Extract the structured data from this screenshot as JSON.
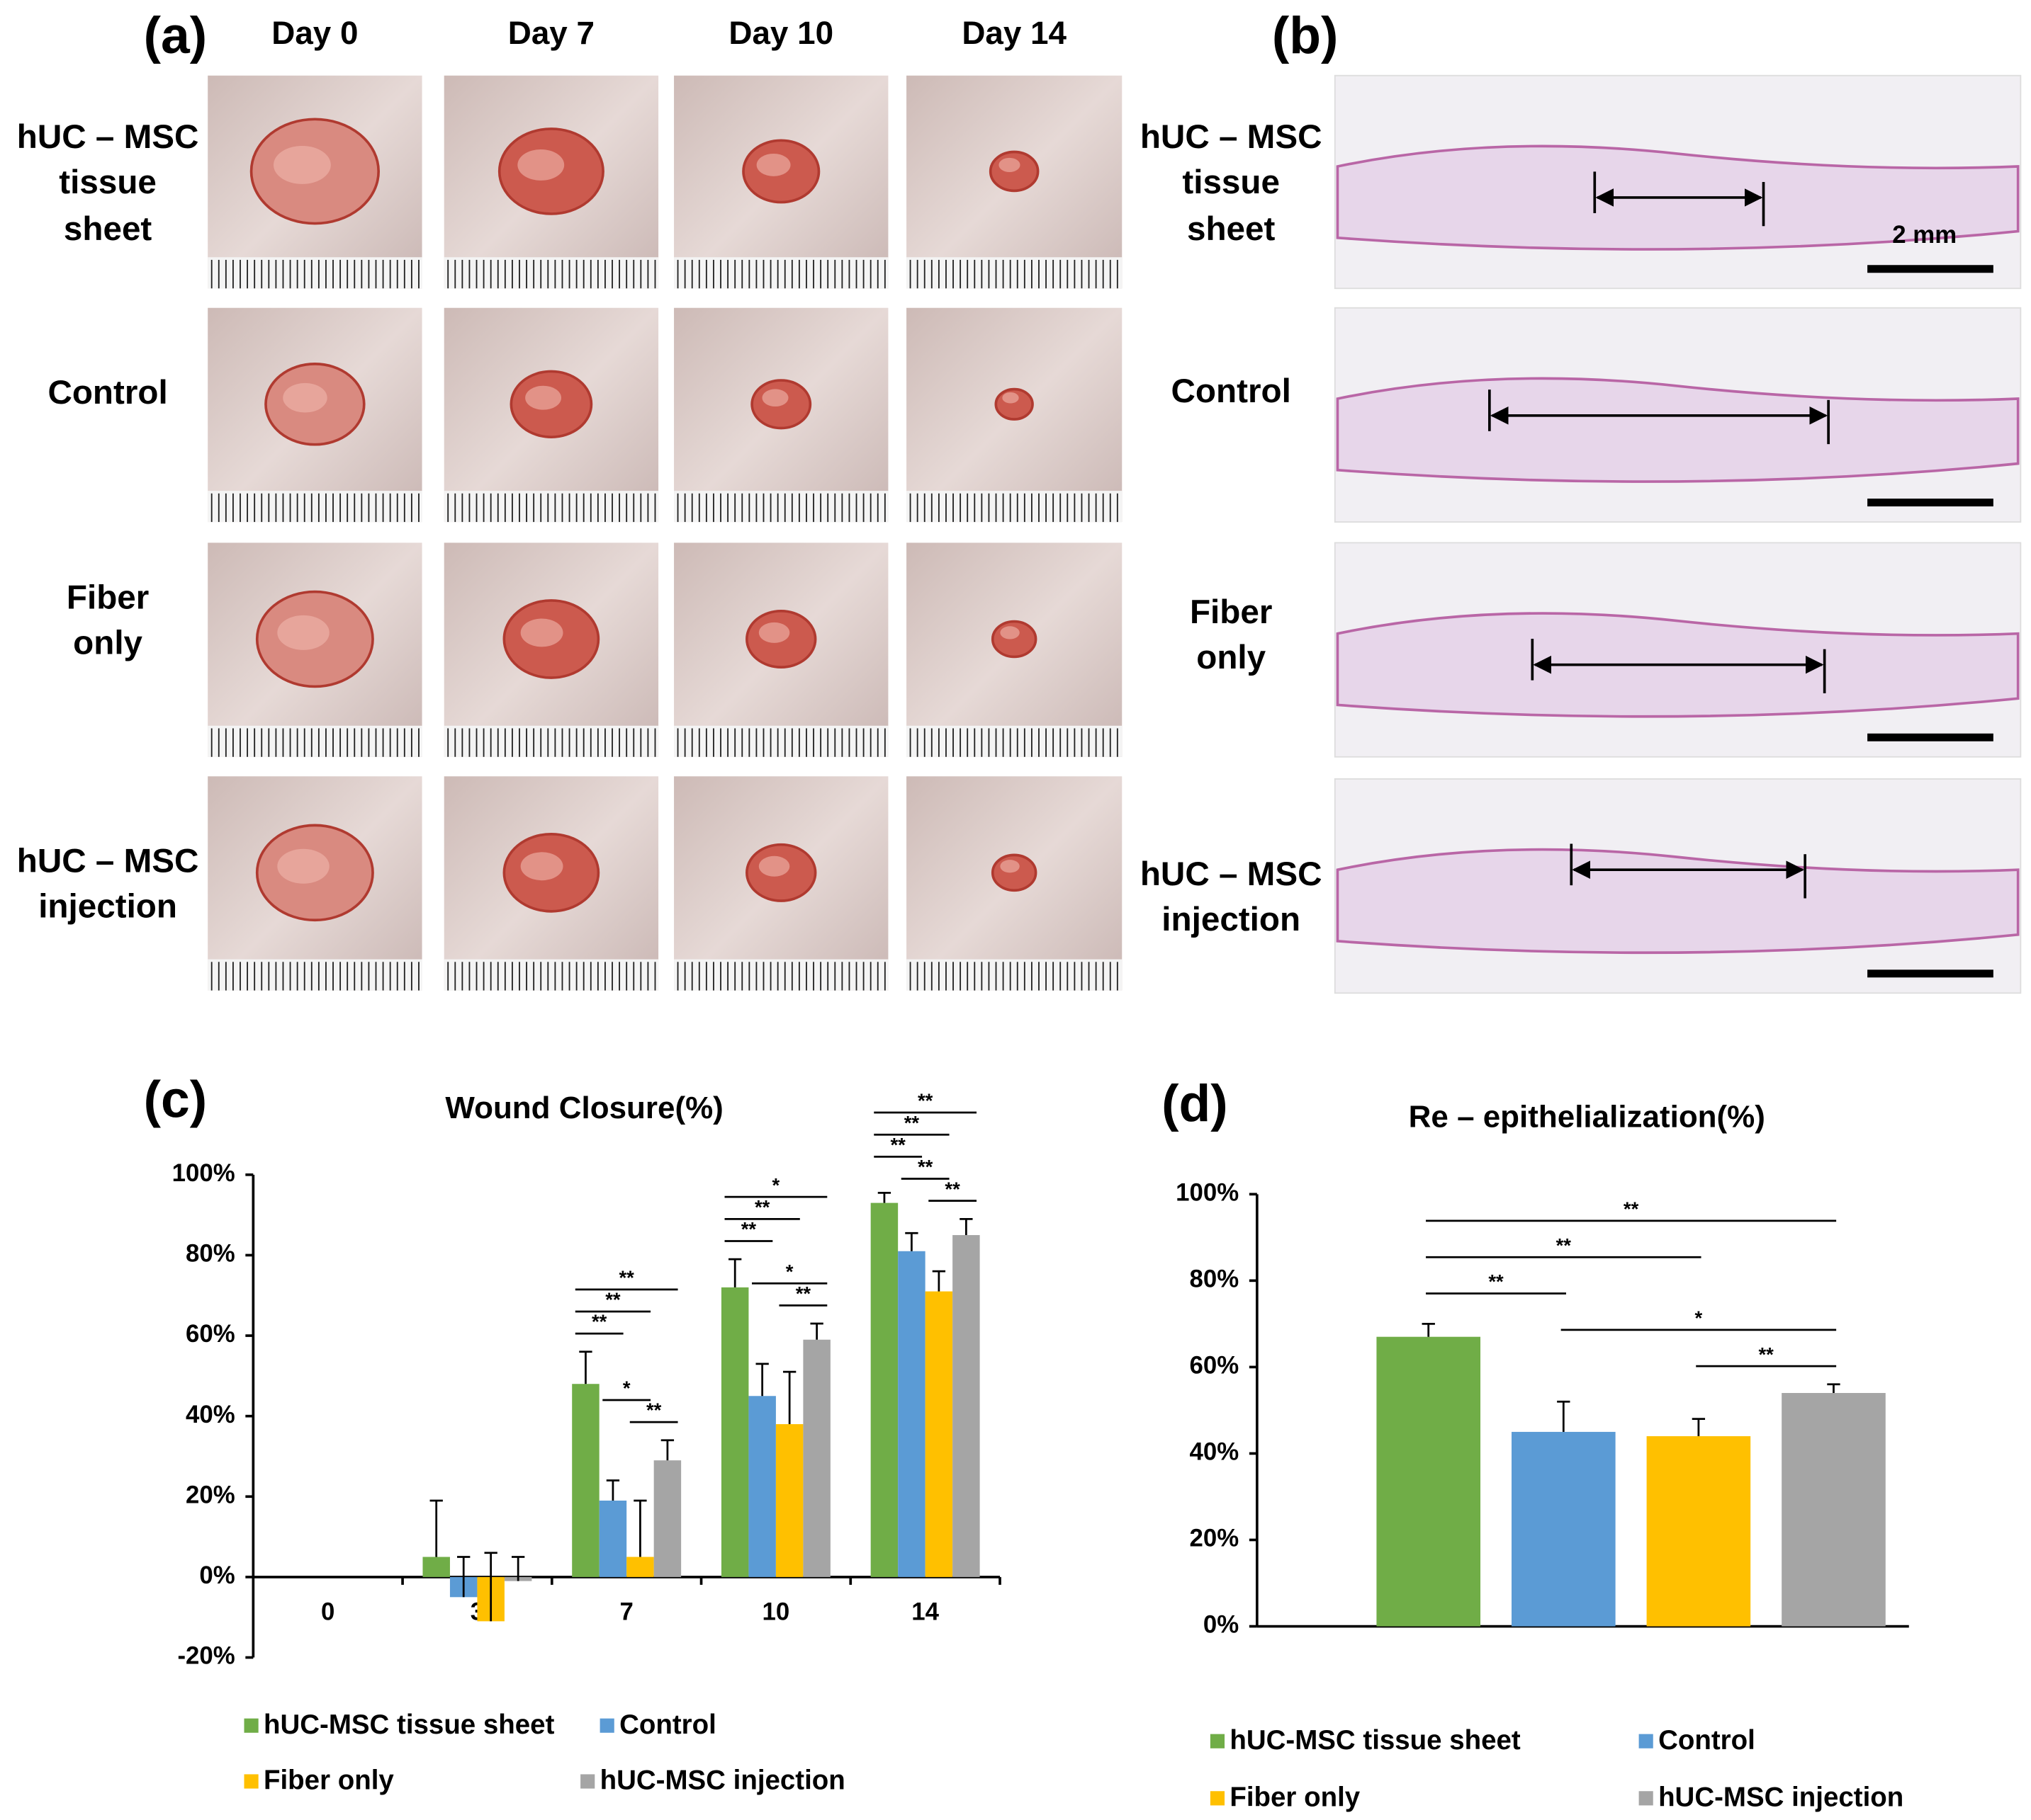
{
  "figure": {
    "panel_a": {
      "label": "(a)",
      "columns": [
        "Day 0",
        "Day 7",
        "Day 10",
        "Day 14"
      ],
      "rows": [
        [
          "hUC – MSC",
          "tissue",
          "sheet"
        ],
        [
          "Control"
        ],
        [
          "Fiber",
          "only"
        ],
        [
          "hUC – MSC",
          "injection"
        ]
      ]
    },
    "panel_b": {
      "label": "(b)",
      "rows": [
        [
          "hUC – MSC",
          "tissue",
          "sheet"
        ],
        [
          "Control"
        ],
        [
          "Fiber",
          "only"
        ],
        [
          "hUC – MSC",
          "injection"
        ]
      ],
      "scale_bar": "2 mm"
    }
  },
  "chart_data": [
    {
      "type": "bar",
      "label": "(c)",
      "title": "Wound Closure(%)",
      "categories": [
        "0",
        "3",
        "7",
        "10",
        "14"
      ],
      "series": [
        {
          "name": "hUC-MSC tissue sheet",
          "color": "#70ad47",
          "values": [
            0,
            5,
            48,
            72,
            93
          ],
          "errors": [
            0,
            14,
            8,
            7,
            2.5
          ]
        },
        {
          "name": "Control",
          "color": "#5b9bd5",
          "values": [
            0,
            -5,
            19,
            45,
            81
          ],
          "errors": [
            0,
            10,
            5,
            8,
            4.5
          ]
        },
        {
          "name": "Fiber only",
          "color": "#ffc000",
          "values": [
            0,
            -11,
            5,
            38,
            71
          ],
          "errors": [
            0,
            17,
            14,
            13,
            5
          ]
        },
        {
          "name": "hUC-MSC injection",
          "color": "#a5a5a5",
          "values": [
            0,
            -1,
            29,
            59,
            85
          ],
          "errors": [
            0,
            6,
            5,
            4,
            4
          ]
        }
      ],
      "ylim": [
        -20,
        100
      ],
      "yticks": [
        {
          "value": -20,
          "label": "-20%"
        },
        {
          "value": 0,
          "label": "0%"
        },
        {
          "value": 20,
          "label": "20%"
        },
        {
          "value": 40,
          "label": "40%"
        },
        {
          "value": 60,
          "label": "60%"
        },
        {
          "value": 80,
          "label": "80%"
        },
        {
          "value": 100,
          "label": "100%"
        }
      ],
      "annotations": [
        {
          "category": 2,
          "series": [
            2,
            3
          ],
          "text": "**"
        },
        {
          "category": 2,
          "series": [
            1,
            2
          ],
          "text": "*"
        },
        {
          "category": 2,
          "series": [
            0,
            1
          ],
          "text": "**"
        },
        {
          "category": 2,
          "series": [
            0,
            2
          ],
          "text": "**"
        },
        {
          "category": 2,
          "series": [
            0,
            3
          ],
          "text": "**"
        },
        {
          "category": 3,
          "series": [
            2,
            3
          ],
          "text": "**"
        },
        {
          "category": 3,
          "series": [
            1,
            3
          ],
          "text": "*"
        },
        {
          "category": 3,
          "series": [
            0,
            1
          ],
          "text": "**"
        },
        {
          "category": 3,
          "series": [
            0,
            2
          ],
          "text": "**"
        },
        {
          "category": 3,
          "series": [
            0,
            3
          ],
          "text": "*"
        },
        {
          "category": 4,
          "series": [
            2,
            3
          ],
          "text": "**"
        },
        {
          "category": 4,
          "series": [
            1,
            2
          ],
          "text": "**"
        },
        {
          "category": 4,
          "series": [
            0,
            1
          ],
          "text": "**"
        },
        {
          "category": 4,
          "series": [
            0,
            2
          ],
          "text": "**"
        },
        {
          "category": 4,
          "series": [
            0,
            3
          ],
          "text": "**"
        }
      ]
    },
    {
      "type": "bar",
      "label": "(d)",
      "title": "Re – epithelialization(%)",
      "series": [
        {
          "name": "hUC-MSC tissue sheet",
          "color": "#70ad47",
          "values": [
            67
          ],
          "errors": [
            3
          ]
        },
        {
          "name": "Control",
          "color": "#5b9bd5",
          "values": [
            45
          ],
          "errors": [
            7
          ]
        },
        {
          "name": "Fiber only",
          "color": "#ffc000",
          "values": [
            44
          ],
          "errors": [
            4
          ]
        },
        {
          "name": "hUC-MSC injection",
          "color": "#a5a5a5",
          "values": [
            54
          ],
          "errors": [
            2
          ]
        }
      ],
      "ylim": [
        0,
        100
      ],
      "yticks": [
        {
          "value": 0,
          "label": "0%"
        },
        {
          "value": 20,
          "label": "20%"
        },
        {
          "value": 40,
          "label": "40%"
        },
        {
          "value": 60,
          "label": "60%"
        },
        {
          "value": 80,
          "label": "80%"
        },
        {
          "value": 100,
          "label": "100%"
        }
      ],
      "annotations": [
        {
          "series": [
            2,
            3
          ],
          "text": "**"
        },
        {
          "series": [
            1,
            3
          ],
          "text": "*"
        },
        {
          "series": [
            0,
            1
          ],
          "text": "**"
        },
        {
          "series": [
            0,
            2
          ],
          "text": "**"
        },
        {
          "series": [
            0,
            3
          ],
          "text": "**"
        }
      ]
    }
  ]
}
